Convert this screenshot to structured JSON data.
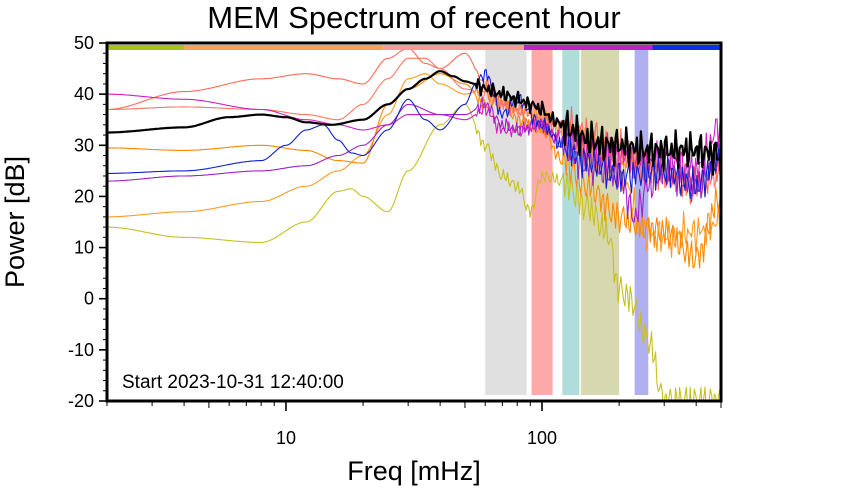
{
  "chart_data": {
    "type": "line",
    "title": "MEM Spectrum of recent hour",
    "xlabel": "Freq [mHz]",
    "ylabel": "Power [dB]",
    "xscale": "log",
    "xlim": [
      2,
      500
    ],
    "ylim": [
      -20,
      50
    ],
    "x_tick_labels": [
      {
        "value": 10,
        "label": "10"
      },
      {
        "value": 100,
        "label": "100"
      }
    ],
    "y_tick_labels": [
      {
        "value": 50,
        "label": "50"
      },
      {
        "value": 40,
        "label": "40"
      },
      {
        "value": 30,
        "label": "30"
      },
      {
        "value": 20,
        "label": "20"
      },
      {
        "value": 10,
        "label": "10"
      },
      {
        "value": 0,
        "label": "0"
      },
      {
        "value": -10,
        "label": "-10"
      },
      {
        "value": -20,
        "label": "-20"
      }
    ],
    "annotation": "Start 2023-10-31 12:40:00",
    "top_color_bar": [
      {
        "from": 2,
        "to": 4,
        "color": "#a8c020"
      },
      {
        "from": 4,
        "to": 24,
        "color": "#ffa050"
      },
      {
        "from": 24,
        "to": 85,
        "color": "#ff9898"
      },
      {
        "from": 85,
        "to": 270,
        "color": "#c020c8"
      },
      {
        "from": 270,
        "to": 500,
        "color": "#1030e0"
      }
    ],
    "bands": [
      {
        "from": 60,
        "to": 87,
        "color": "#e0e0e0"
      },
      {
        "from": 91,
        "to": 110,
        "color": "#ffaaaa"
      },
      {
        "from": 120,
        "to": 140,
        "color": "#b0dcdc"
      },
      {
        "from": 142,
        "to": 200,
        "color": "#d8d8b0"
      },
      {
        "from": 230,
        "to": 260,
        "color": "#b0b0f0"
      }
    ],
    "series": [
      {
        "name": "yellow",
        "color": "#c8c020",
        "x": [
          2,
          4,
          8,
          12,
          16,
          18,
          20,
          25,
          30,
          40,
          50,
          60,
          70,
          80,
          90,
          100,
          120,
          150,
          180,
          200,
          220,
          260,
          300
        ],
        "y": [
          14,
          12,
          11,
          15,
          21,
          21.5,
          20,
          17,
          25,
          34,
          38,
          30,
          24,
          22,
          17,
          24,
          23,
          18,
          13,
          2,
          0,
          -8,
          -20
        ]
      },
      {
        "name": "orange-light",
        "color": "#ff9a20",
        "x": [
          2,
          4,
          8,
          12,
          16,
          20,
          25,
          30,
          35,
          40,
          50,
          60,
          70,
          80,
          100,
          120,
          150,
          200,
          250,
          300,
          400,
          500
        ],
        "y": [
          16,
          17,
          19,
          22,
          25,
          28,
          36,
          43,
          44,
          42,
          40,
          41,
          38,
          37,
          36,
          33,
          29,
          26,
          13,
          12,
          13,
          15
        ]
      },
      {
        "name": "orange-2",
        "color": "#ff8800",
        "x": [
          2,
          4,
          8,
          12,
          16,
          20,
          25,
          30,
          40,
          50,
          60,
          70,
          80,
          100,
          120,
          150,
          200,
          250,
          300,
          400,
          500
        ],
        "y": [
          29.5,
          29,
          30,
          29,
          27,
          26.5,
          38,
          41,
          44,
          42,
          38,
          39,
          35,
          33,
          27,
          22,
          16,
          14,
          13,
          8,
          20
        ]
      },
      {
        "name": "salmon",
        "color": "#ff6a5a",
        "x": [
          2,
          4,
          8,
          12,
          16,
          20,
          25,
          30,
          35,
          40,
          50,
          60,
          70,
          80,
          90,
          100,
          120,
          150,
          200,
          250,
          300,
          400,
          500
        ],
        "y": [
          37,
          40.5,
          43,
          44,
          43,
          42,
          47,
          49,
          46,
          45,
          48,
          42,
          38,
          37,
          34,
          35,
          34,
          32,
          29,
          26,
          25,
          23,
          26
        ]
      },
      {
        "name": "salmon-2",
        "color": "#ff7860",
        "x": [
          2,
          4,
          8,
          12,
          16,
          20,
          25,
          30,
          35,
          40,
          50,
          60,
          70,
          80,
          100,
          120,
          150,
          200,
          300,
          400,
          500
        ],
        "y": [
          37,
          37.5,
          37,
          36,
          35,
          38,
          43,
          47,
          47,
          45,
          41,
          40,
          38,
          37,
          35,
          32,
          30,
          28,
          24,
          22,
          25
        ]
      },
      {
        "name": "magenta",
        "color": "#d020c0",
        "x": [
          2,
          4,
          8,
          12,
          16,
          20,
          25,
          30,
          40,
          50,
          60,
          70,
          80,
          100,
          120,
          150,
          200,
          250,
          300,
          400,
          500
        ],
        "y": [
          40,
          39,
          37,
          35,
          34,
          33,
          34,
          36,
          36,
          35,
          37,
          33,
          33,
          34,
          31,
          29,
          28,
          26,
          27,
          25,
          34
        ]
      },
      {
        "name": "purple",
        "color": "#a020c8",
        "x": [
          2,
          4,
          8,
          12,
          16,
          20,
          25,
          30,
          40,
          50,
          60,
          70,
          80,
          100,
          120,
          150,
          200,
          230,
          260,
          300,
          400,
          500
        ],
        "y": [
          23,
          24,
          25,
          26,
          28,
          30,
          34,
          38,
          36,
          36,
          38,
          34,
          33,
          34,
          30,
          26,
          24,
          16,
          22,
          25,
          22,
          28
        ]
      },
      {
        "name": "blue",
        "color": "#1020d0",
        "x": [
          2,
          4,
          8,
          10,
          12,
          14,
          16,
          18,
          20,
          25,
          30,
          35,
          40,
          50,
          55,
          60,
          70,
          80,
          100,
          120,
          150,
          200,
          300,
          400,
          500
        ],
        "y": [
          24.5,
          25,
          27,
          30,
          33,
          34,
          31,
          28.5,
          28,
          33,
          39,
          35,
          33,
          38,
          42,
          44,
          36,
          39,
          34,
          30,
          27,
          24,
          25,
          22,
          28
        ]
      },
      {
        "name": "black",
        "color": "#000000",
        "x": [
          2,
          4,
          6,
          8,
          10,
          12,
          15,
          20,
          25,
          30,
          35,
          40,
          45,
          50,
          55,
          60,
          70,
          80,
          90,
          100,
          110,
          120,
          130,
          150,
          180,
          200,
          250,
          300,
          400,
          500
        ],
        "y": [
          32.5,
          33.5,
          35.5,
          36,
          35.5,
          34.5,
          34,
          35,
          38,
          41,
          43,
          44.5,
          43.5,
          42.5,
          42,
          41,
          40,
          39,
          38,
          37,
          35,
          34,
          33,
          31,
          30,
          30,
          29,
          29,
          29,
          28
        ]
      }
    ]
  }
}
